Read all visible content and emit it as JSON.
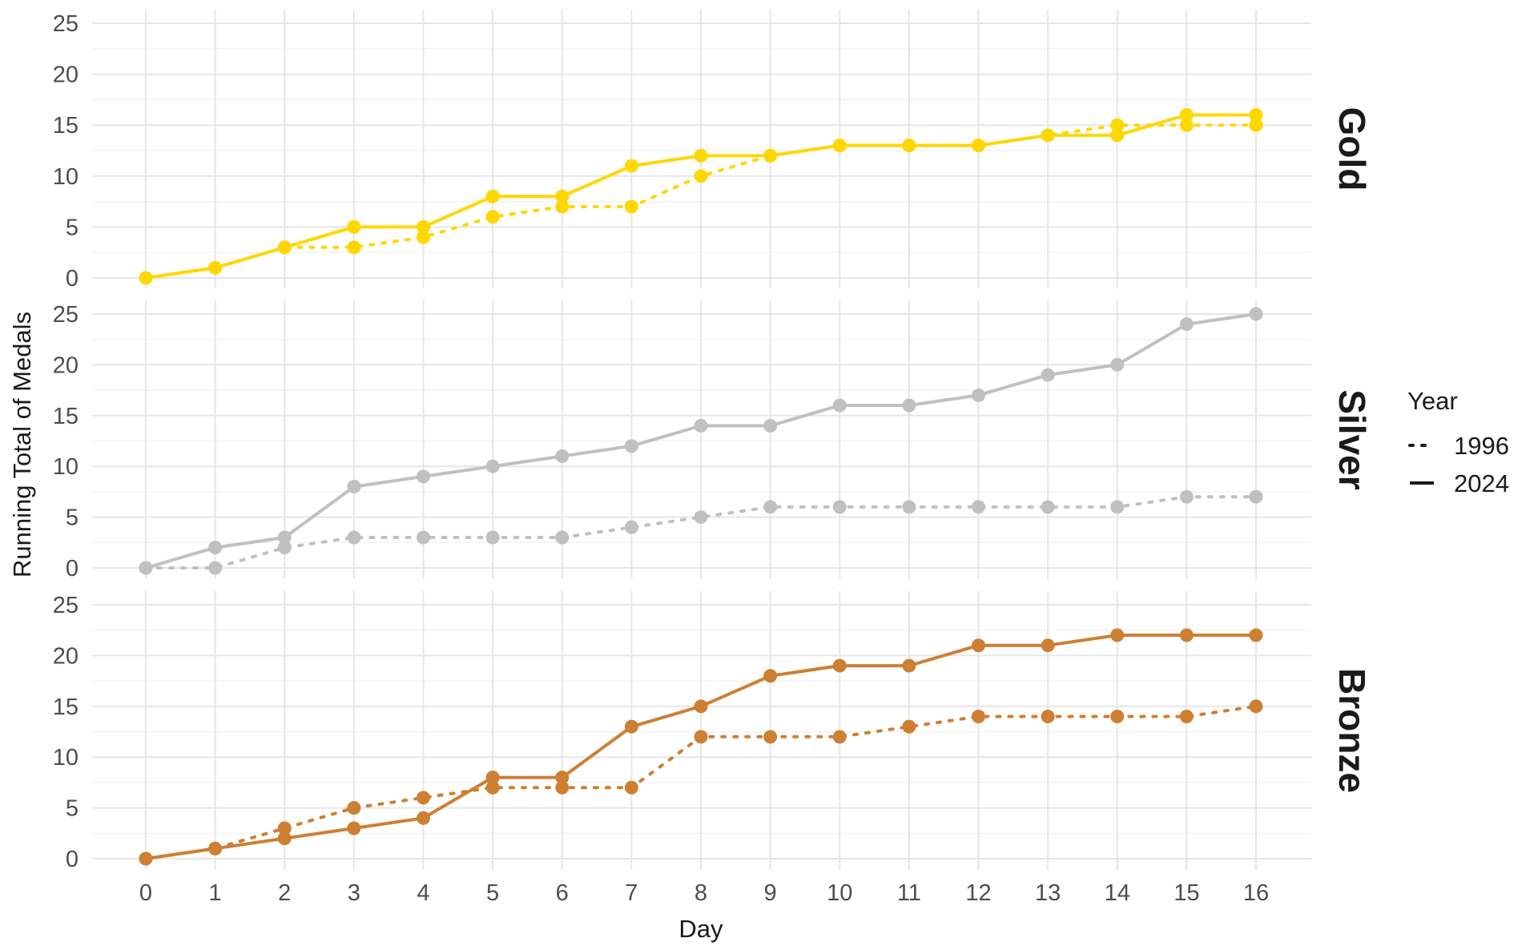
{
  "chart_data": {
    "type": "line",
    "xlabel": "Day",
    "ylabel": "Running Total of Medals",
    "x": [
      0,
      1,
      2,
      3,
      4,
      5,
      6,
      7,
      8,
      9,
      10,
      11,
      12,
      13,
      14,
      15,
      16
    ],
    "xlim": [
      0,
      16
    ],
    "ylim": [
      0,
      25
    ],
    "y_ticks": [
      0,
      5,
      10,
      15,
      20,
      25
    ],
    "grid": true,
    "legend": {
      "title": "Year",
      "position": "right",
      "entries": [
        {
          "label": "1996",
          "linetype": "dotted"
        },
        {
          "label": "2024",
          "linetype": "solid"
        }
      ]
    },
    "facets": [
      {
        "label": "Gold",
        "color": "#FFD700",
        "series": [
          {
            "name": "1996",
            "linetype": "dotted",
            "values": [
              0,
              1,
              3,
              3,
              4,
              6,
              7,
              7,
              10,
              12,
              13,
              13,
              13,
              14,
              15,
              15,
              15
            ]
          },
          {
            "name": "2024",
            "linetype": "solid",
            "values": [
              0,
              1,
              3,
              5,
              5,
              8,
              8,
              11,
              12,
              12,
              13,
              13,
              13,
              14,
              14,
              16,
              16
            ]
          }
        ]
      },
      {
        "label": "Silver",
        "color": "#C0C0C0",
        "series": [
          {
            "name": "1996",
            "linetype": "dotted",
            "values": [
              0,
              0,
              2,
              3,
              3,
              3,
              3,
              4,
              5,
              6,
              6,
              6,
              6,
              6,
              6,
              7,
              7
            ]
          },
          {
            "name": "2024",
            "linetype": "solid",
            "values": [
              0,
              2,
              3,
              8,
              9,
              10,
              11,
              12,
              14,
              14,
              16,
              16,
              17,
              19,
              20,
              24,
              25
            ]
          }
        ]
      },
      {
        "label": "Bronze",
        "color": "#CD7F32",
        "series": [
          {
            "name": "1996",
            "linetype": "dotted",
            "values": [
              0,
              1,
              3,
              5,
              6,
              7,
              7,
              7,
              12,
              12,
              12,
              13,
              14,
              14,
              14,
              14,
              15
            ]
          },
          {
            "name": "2024",
            "linetype": "solid",
            "values": [
              0,
              1,
              2,
              3,
              4,
              8,
              8,
              13,
              15,
              18,
              19,
              19,
              21,
              21,
              22,
              22,
              22
            ]
          }
        ]
      }
    ]
  }
}
